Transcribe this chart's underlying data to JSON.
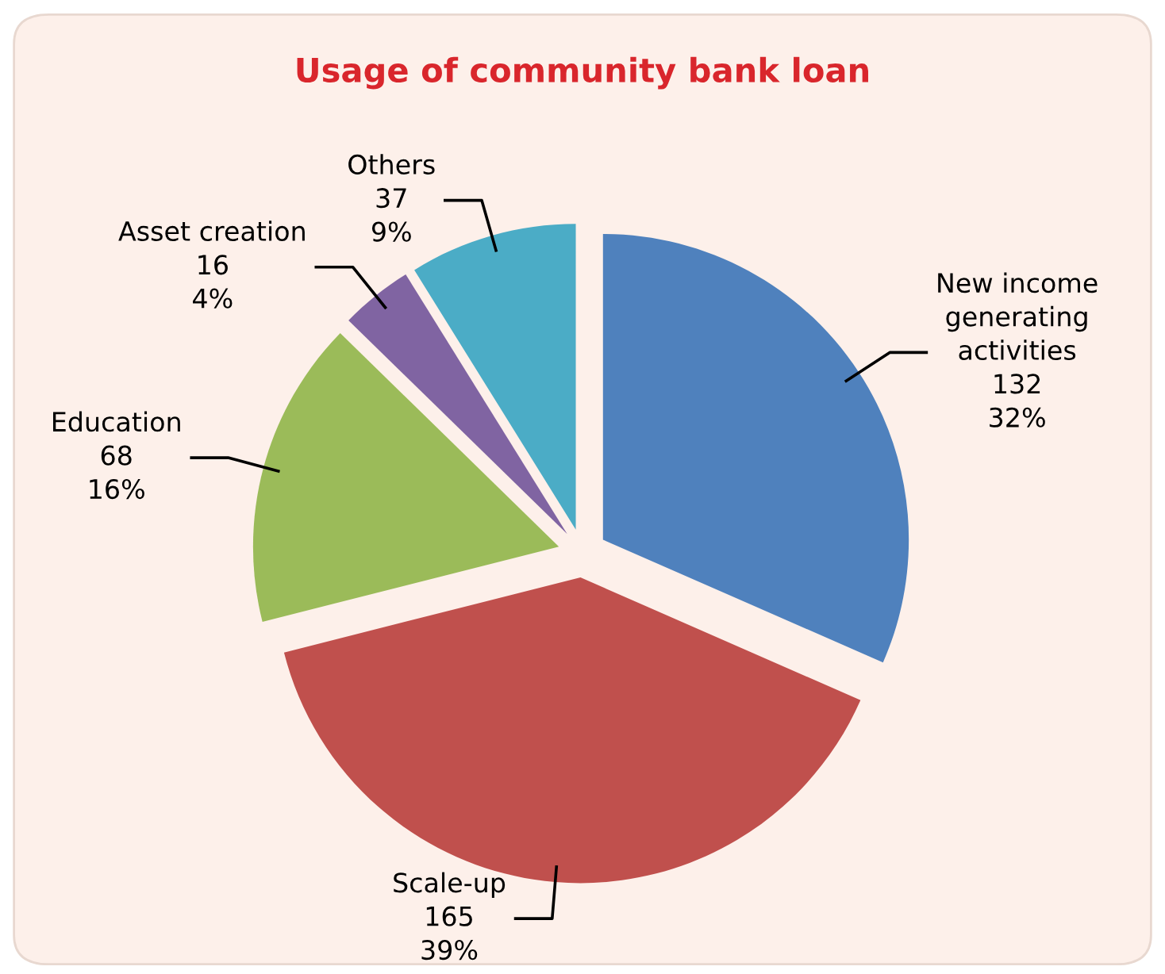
{
  "chart_data": {
    "type": "pie",
    "title": "Usage of community bank loan",
    "categories": [
      "New income\ngenerating\nactivities",
      "Scale-up",
      "Education",
      "Asset creation",
      "Others"
    ],
    "values": [
      132,
      165,
      68,
      16,
      37
    ],
    "value_labels": [
      "132\n32%",
      "165\n39%",
      "68\n16%",
      "16\n4%",
      "37\n9%"
    ],
    "colors": [
      "#4f81bd",
      "#c0504d",
      "#9bbb59",
      "#8064a2",
      "#4bacc6"
    ],
    "legend": false
  }
}
